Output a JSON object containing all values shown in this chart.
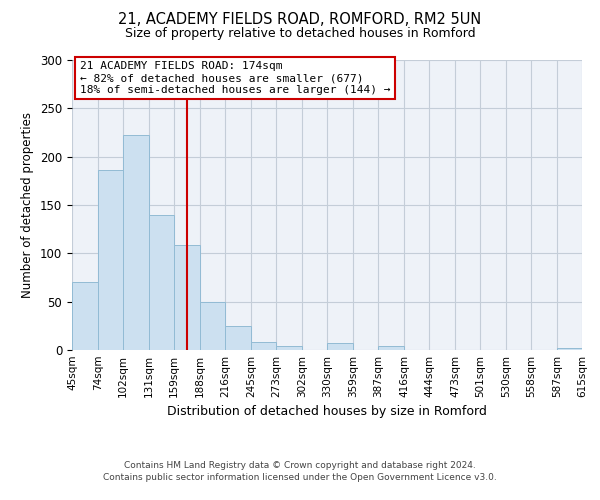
{
  "title": "21, ACADEMY FIELDS ROAD, ROMFORD, RM2 5UN",
  "subtitle": "Size of property relative to detached houses in Romford",
  "xlabel": "Distribution of detached houses by size in Romford",
  "ylabel": "Number of detached properties",
  "bin_edges": [
    45,
    74,
    102,
    131,
    159,
    188,
    216,
    245,
    273,
    302,
    330,
    359,
    387,
    416,
    444,
    473,
    501,
    530,
    558,
    587,
    615
  ],
  "bin_labels": [
    "45sqm",
    "74sqm",
    "102sqm",
    "131sqm",
    "159sqm",
    "188sqm",
    "216sqm",
    "245sqm",
    "273sqm",
    "302sqm",
    "330sqm",
    "359sqm",
    "387sqm",
    "416sqm",
    "444sqm",
    "473sqm",
    "501sqm",
    "530sqm",
    "558sqm",
    "587sqm",
    "615sqm"
  ],
  "counts": [
    70,
    186,
    222,
    140,
    109,
    50,
    25,
    8,
    4,
    0,
    7,
    0,
    4,
    0,
    0,
    0,
    0,
    0,
    0,
    2
  ],
  "bar_color": "#cce0f0",
  "bar_edge_color": "#92bbd4",
  "vline_x": 174,
  "vline_color": "#cc0000",
  "annotation_title": "21 ACADEMY FIELDS ROAD: 174sqm",
  "annotation_line1": "← 82% of detached houses are smaller (677)",
  "annotation_line2": "18% of semi-detached houses are larger (144) →",
  "annotation_box_color": "#ffffff",
  "annotation_box_edge_color": "#cc0000",
  "ylim": [
    0,
    300
  ],
  "background_color": "#eef2f8",
  "grid_color": "#c4cdd8",
  "footer_line1": "Contains HM Land Registry data © Crown copyright and database right 2024.",
  "footer_line2": "Contains public sector information licensed under the Open Government Licence v3.0."
}
